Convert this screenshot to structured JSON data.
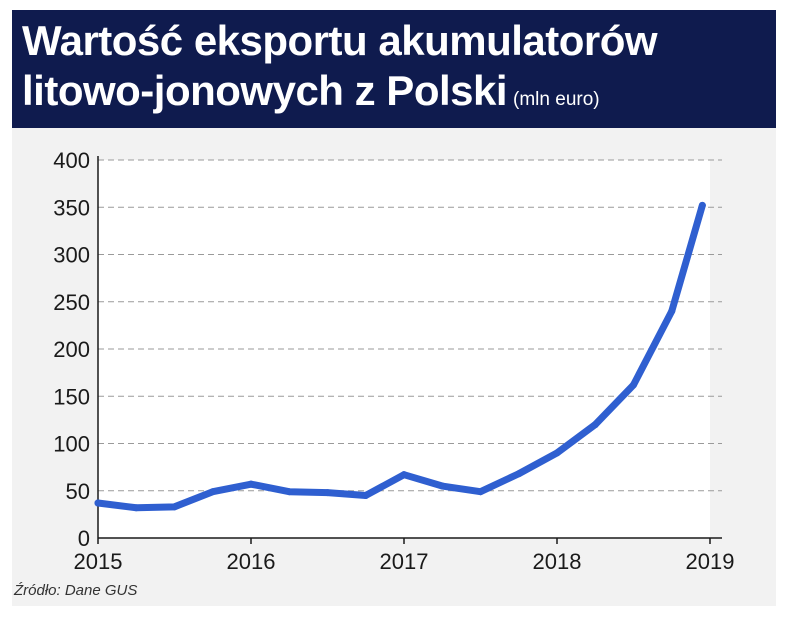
{
  "header": {
    "title_line1": "Wartość eksportu akumulatorów",
    "title_line2": "litowo-jonowych z Polski",
    "unit": "(mln euro)"
  },
  "source": "Źródło: Dane GUS",
  "colors": {
    "header_bg": "#0f1b4e",
    "line": "#2f5fd0",
    "panel_bg": "#f2f2f2"
  },
  "chart_data": {
    "type": "line",
    "title": "Wartość eksportu akumulatorów litowo-jonowych z Polski",
    "unit": "(mln euro)",
    "xlabel": "",
    "ylabel": "",
    "ylim": [
      0,
      400
    ],
    "yticks": [
      0,
      50,
      100,
      150,
      200,
      250,
      300,
      350,
      400
    ],
    "xlim": [
      2015,
      2019
    ],
    "xticks": [
      "2015",
      "2016",
      "2017",
      "2018",
      "2019"
    ],
    "grid": "horizontal dashed",
    "series": [
      {
        "x": [
          2015.0,
          2015.25,
          2015.5,
          2015.75,
          2016.0,
          2016.25,
          2016.5,
          2016.75,
          2017.0,
          2017.25,
          2017.5,
          2017.75,
          2018.0,
          2018.25,
          2018.5,
          2018.75,
          2018.95
        ],
        "values": [
          37,
          32,
          33,
          49,
          57,
          49,
          48,
          45,
          67,
          55,
          49,
          68,
          90,
          120,
          162,
          240,
          352
        ]
      }
    ]
  }
}
